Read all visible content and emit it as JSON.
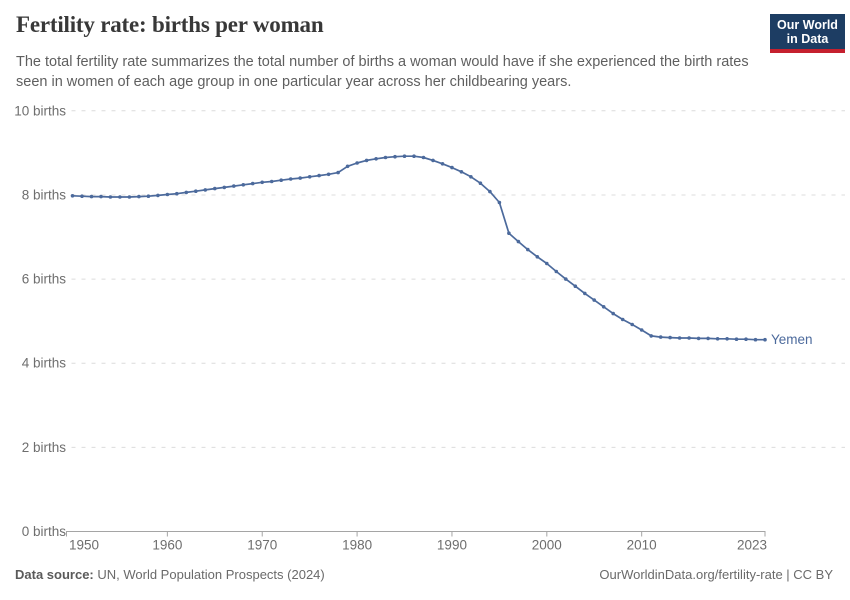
{
  "header": {
    "title": "Fertility rate: births per woman",
    "subtitle": "The total fertility rate summarizes the total number of births a woman would have if she experienced the birth rates seen in women of each age group in one particular year across her childbearing years.",
    "logo": {
      "line1": "Our World",
      "line2": "in Data",
      "bg_color": "#1d3d63",
      "stripe_color": "#c5202e"
    }
  },
  "chart_data": {
    "type": "line",
    "title": "Fertility rate: births per woman",
    "xlabel": "",
    "ylabel": "",
    "xlim": [
      1950,
      2023
    ],
    "ylim": [
      0,
      10
    ],
    "grid": "horizontal-dashed",
    "legend_position": "end-of-line-label",
    "x_ticks": [
      1950,
      1960,
      1970,
      1980,
      1990,
      2000,
      2010,
      2023
    ],
    "y_ticks": [
      {
        "value": 0,
        "label": "0 births"
      },
      {
        "value": 2,
        "label": "2 births"
      },
      {
        "value": 4,
        "label": "4 births"
      },
      {
        "value": 6,
        "label": "6 births"
      },
      {
        "value": 8,
        "label": "8 births"
      },
      {
        "value": 10,
        "label": "10 births"
      }
    ],
    "years": [
      1950,
      1951,
      1952,
      1953,
      1954,
      1955,
      1956,
      1957,
      1958,
      1959,
      1960,
      1961,
      1962,
      1963,
      1964,
      1965,
      1966,
      1967,
      1968,
      1969,
      1970,
      1971,
      1972,
      1973,
      1974,
      1975,
      1976,
      1977,
      1978,
      1979,
      1980,
      1981,
      1982,
      1983,
      1984,
      1985,
      1986,
      1987,
      1988,
      1989,
      1990,
      1991,
      1992,
      1993,
      1994,
      1995,
      1996,
      1997,
      1998,
      1999,
      2000,
      2001,
      2002,
      2003,
      2004,
      2005,
      2006,
      2007,
      2008,
      2009,
      2010,
      2011,
      2012,
      2013,
      2014,
      2015,
      2016,
      2017,
      2018,
      2019,
      2020,
      2021,
      2022,
      2023
    ],
    "series": [
      {
        "name": "Yemen",
        "color": "#4c6a9c",
        "values": [
          7.98,
          7.97,
          7.96,
          7.96,
          7.95,
          7.95,
          7.95,
          7.96,
          7.97,
          7.99,
          8.01,
          8.03,
          8.06,
          8.09,
          8.12,
          8.15,
          8.18,
          8.21,
          8.24,
          8.27,
          8.3,
          8.32,
          8.35,
          8.38,
          8.4,
          8.43,
          8.46,
          8.49,
          8.53,
          8.68,
          8.76,
          8.82,
          8.86,
          8.89,
          8.91,
          8.92,
          8.92,
          8.89,
          8.82,
          8.74,
          8.65,
          8.55,
          8.43,
          8.28,
          8.08,
          7.82,
          7.09,
          6.89,
          6.7,
          6.53,
          6.37,
          6.18,
          6.0,
          5.83,
          5.66,
          5.5,
          5.34,
          5.18,
          5.04,
          4.92,
          4.79,
          4.65,
          4.62,
          4.61,
          4.6,
          4.6,
          4.59,
          4.59,
          4.58,
          4.58,
          4.57,
          4.57,
          4.56,
          4.56
        ]
      }
    ],
    "style": {
      "line_color": "#4c6a9c",
      "gridline_color": "#dcdcdc",
      "axis_color": "#a5a5a5",
      "tick_label_color": "#6e6e6e"
    }
  },
  "footer": {
    "source_label": "Data source:",
    "source_value": " UN, World Population Prospects (2024)",
    "attribution": "OurWorldinData.org/fertility-rate | CC BY"
  }
}
